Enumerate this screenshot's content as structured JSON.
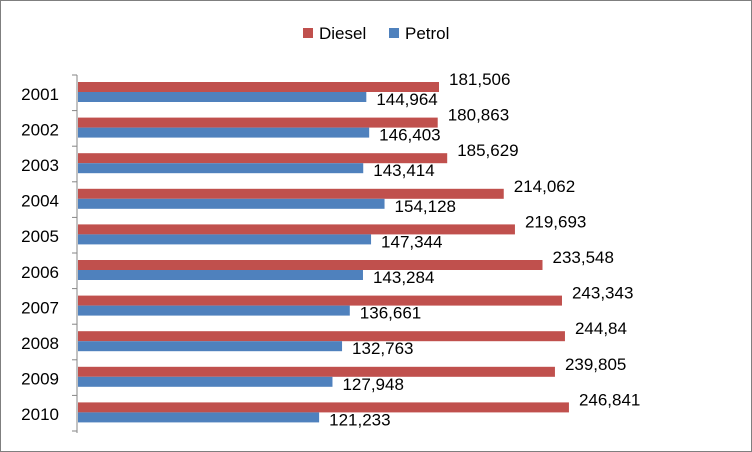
{
  "chart_data": {
    "type": "bar",
    "orientation": "horizontal",
    "title": "",
    "xlabel": "",
    "ylabel": "",
    "categories": [
      "2001",
      "2002",
      "2003",
      "2004",
      "2005",
      "2006",
      "2007",
      "2008",
      "2009",
      "2010"
    ],
    "series": [
      {
        "name": "Diesel",
        "color": "#c0504d",
        "values": [
          181.506,
          180.863,
          185.629,
          214.062,
          219.693,
          233.548,
          243.343,
          244.84,
          239.805,
          246.841
        ],
        "labels": [
          "181,506",
          "180,863",
          "185,629",
          "214,062",
          "219,693",
          "233,548",
          "243,343",
          "244,84",
          "239,805",
          "246,841"
        ]
      },
      {
        "name": "Petrol",
        "color": "#4f81bd",
        "values": [
          144.964,
          146.403,
          143.414,
          154.128,
          147.344,
          143.284,
          136.661,
          132.763,
          127.948,
          121.233
        ],
        "labels": [
          "144,964",
          "146,403",
          "143,414",
          "154,128",
          "147,344",
          "143,284",
          "136,661",
          "132,763",
          "127,948",
          "121,233"
        ]
      }
    ],
    "xlim": [
      0,
      270
    ],
    "grid": false,
    "legend": "top-center"
  }
}
